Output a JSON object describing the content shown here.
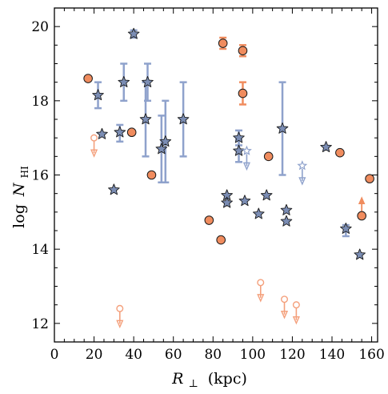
{
  "chart_data": {
    "type": "scatter",
    "title": "",
    "xlabel_main": "R",
    "xlabel_sub": "⊥",
    "xlabel_unit": "(kpc)",
    "ylabel_prefix": "log",
    "ylabel_main": "N",
    "ylabel_sub": "HI",
    "xlim": [
      0,
      163
    ],
    "ylim": [
      11.5,
      20.5
    ],
    "xticks": [
      0,
      20,
      40,
      60,
      80,
      100,
      120,
      140,
      160
    ],
    "yticks": [
      12,
      14,
      16,
      18,
      20
    ],
    "minor_x_step": 5,
    "minor_y_step": 0.5,
    "grid": false,
    "colors": {
      "orange_fill": "#f08c5e",
      "orange_light": "#f4a07c",
      "blue_fill": "#7b8db4",
      "blue_light": "#8fa2cc",
      "edge": "#1a1a1a"
    },
    "series": [
      {
        "marker": "circle",
        "color": "orange",
        "points": [
          {
            "x": 17,
            "y": 18.6
          },
          {
            "x": 39,
            "y": 17.15
          },
          {
            "x": 49,
            "y": 16.0
          },
          {
            "x": 78,
            "y": 14.78
          },
          {
            "x": 84,
            "y": 14.25
          },
          {
            "x": 85,
            "y": 19.55,
            "err": [
              19.4,
              19.7
            ]
          },
          {
            "x": 95,
            "y": 19.35,
            "err": [
              19.2,
              19.5
            ]
          },
          {
            "x": 95,
            "y": 18.2,
            "err": [
              17.9,
              18.5
            ]
          },
          {
            "x": 108,
            "y": 16.5
          },
          {
            "x": 144,
            "y": 16.6
          },
          {
            "x": 155,
            "y": 14.9,
            "limit": "lower"
          },
          {
            "x": 159,
            "y": 15.9
          }
        ]
      },
      {
        "marker": "open-circle",
        "color": "orange-light",
        "points": [
          {
            "x": 20,
            "y": 17.0,
            "limit": "upper"
          },
          {
            "x": 33,
            "y": 12.4,
            "limit": "upper"
          },
          {
            "x": 104,
            "y": 13.1,
            "limit": "upper"
          },
          {
            "x": 116,
            "y": 12.65,
            "limit": "upper"
          },
          {
            "x": 122,
            "y": 12.5,
            "limit": "upper"
          }
        ]
      },
      {
        "marker": "star",
        "color": "blue",
        "points": [
          {
            "x": 22,
            "y": 18.15,
            "err": [
              17.8,
              18.5
            ]
          },
          {
            "x": 24,
            "y": 17.1
          },
          {
            "x": 30,
            "y": 15.6
          },
          {
            "x": 33,
            "y": 17.15,
            "err": [
              16.9,
              17.35
            ]
          },
          {
            "x": 35,
            "y": 18.5,
            "err": [
              18.0,
              19.0
            ]
          },
          {
            "x": 40,
            "y": 19.8,
            "err": [
              19.7,
              19.9
            ]
          },
          {
            "x": 46,
            "y": 17.5,
            "err": [
              16.5,
              18.5
            ]
          },
          {
            "x": 47,
            "y": 18.5,
            "err": [
              18.0,
              19.0
            ]
          },
          {
            "x": 54,
            "y": 16.7,
            "err": [
              15.8,
              17.6
            ]
          },
          {
            "x": 56,
            "y": 16.9,
            "err": [
              15.8,
              18.0
            ]
          },
          {
            "x": 65,
            "y": 17.5,
            "err": [
              16.5,
              18.5
            ]
          },
          {
            "x": 87,
            "y": 15.45
          },
          {
            "x": 87,
            "y": 15.25
          },
          {
            "x": 93,
            "y": 17.0,
            "err": [
              16.8,
              17.2
            ]
          },
          {
            "x": 93,
            "y": 16.65,
            "err": [
              16.35,
              16.95
            ]
          },
          {
            "x": 96,
            "y": 15.3
          },
          {
            "x": 103,
            "y": 14.95
          },
          {
            "x": 107,
            "y": 15.45
          },
          {
            "x": 115,
            "y": 17.25,
            "err": [
              16.0,
              18.5
            ]
          },
          {
            "x": 117,
            "y": 15.05
          },
          {
            "x": 117,
            "y": 14.75
          },
          {
            "x": 137,
            "y": 16.75
          },
          {
            "x": 147,
            "y": 14.55,
            "err": [
              14.35,
              14.65
            ]
          },
          {
            "x": 154,
            "y": 13.85
          }
        ]
      },
      {
        "marker": "open-star",
        "color": "blue-light",
        "points": [
          {
            "x": 97,
            "y": 16.65,
            "limit": "upper"
          },
          {
            "x": 125,
            "y": 16.25,
            "limit": "upper"
          }
        ]
      }
    ]
  }
}
